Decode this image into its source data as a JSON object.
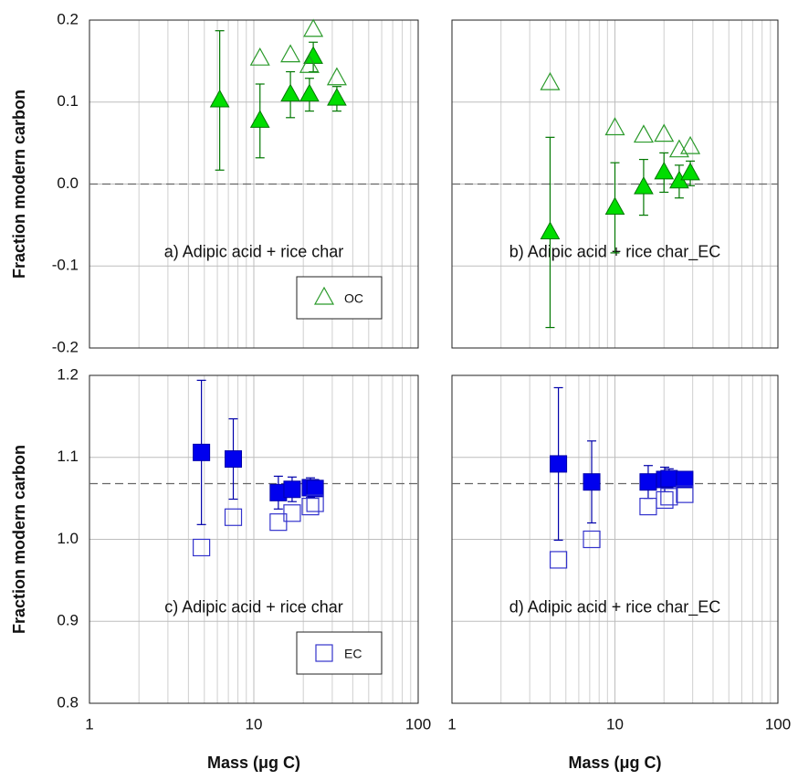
{
  "chart_data": [
    {
      "type": "scatter",
      "xscale": "log",
      "xlim": [
        1,
        100
      ],
      "xticks": [
        1,
        10,
        100
      ],
      "xtick_labels": false,
      "ylim": [
        -0.2,
        0.2
      ],
      "yticks": [
        -0.2,
        -0.1,
        {
          "value": 0,
          "label": "0.0"
        },
        0.1,
        0.2
      ],
      "ytick_labels": true,
      "ylabel": "Fraction modern carbon",
      "annotation": "a) Adipic acid + rice char",
      "hline": 0,
      "grid": true,
      "legend": "lower right",
      "series": [
        {
          "marker": "triangle",
          "filled": true,
          "color": "#00dd00",
          "edge": "#007700",
          "x": [
            6.2,
            10.9,
            16.7,
            21.8,
            23,
            32
          ],
          "values": [
            0.102,
            0.077,
            0.109,
            0.109,
            0.155,
            0.104
          ],
          "errors": [
            0.085,
            0.045,
            0.028,
            0.02,
            0.018,
            0.015
          ]
        },
        {
          "name": "OC",
          "marker": "triangle",
          "filled": false,
          "color": "#2a9a2a",
          "edge": "#2a9a2a",
          "x": [
            10.9,
            16.7,
            21.8,
            23,
            32
          ],
          "values": [
            0.153,
            0.157,
            0.144,
            0.188,
            0.129
          ]
        }
      ]
    },
    {
      "type": "scatter",
      "xscale": "log",
      "xlim": [
        1,
        100
      ],
      "xticks": [
        1,
        10,
        100
      ],
      "xtick_labels": false,
      "ylim": [
        -0.2,
        0.2
      ],
      "yticks": [
        -0.2,
        -0.1,
        0,
        0.1,
        0.2
      ],
      "ytick_labels": false,
      "annotation": "b) Adipic acid + rice char_EC",
      "hline": 0,
      "grid": true,
      "series": [
        {
          "marker": "triangle",
          "filled": true,
          "color": "#00dd00",
          "edge": "#007700",
          "x": [
            4,
            10,
            15,
            20,
            24.8,
            29
          ],
          "values": [
            -0.059,
            -0.029,
            -0.004,
            0.014,
            0.003,
            0.013
          ],
          "errors": [
            0.116,
            0.055,
            0.034,
            0.024,
            0.02,
            0.015
          ]
        },
        {
          "marker": "triangle",
          "filled": false,
          "color": "#2a9a2a",
          "edge": "#2a9a2a",
          "x": [
            4,
            10,
            15,
            20,
            24.8,
            29
          ],
          "values": [
            0.123,
            0.068,
            0.059,
            0.06,
            0.041,
            0.045
          ]
        }
      ]
    },
    {
      "type": "scatter",
      "xscale": "log",
      "xlim": [
        1,
        100
      ],
      "xticks": [
        1,
        10,
        100
      ],
      "xtick_labels": true,
      "ylim": [
        0.8,
        1.2
      ],
      "yticks": [
        0.8,
        0.9,
        {
          "value": 1,
          "label": "1.0"
        },
        1.1,
        1.2
      ],
      "ytick_labels": true,
      "ylabel": "Fraction modern carbon",
      "xlabel": "Mass (μg C)",
      "annotation": "c) Adipic acid + rice char",
      "hline": 1.068,
      "grid": true,
      "legend": "lower right",
      "series": [
        {
          "marker": "square",
          "filled": true,
          "color": "#0000ee",
          "edge": "#0000aa",
          "x": [
            4.8,
            7.5,
            14.1,
            17.1,
            22.1,
            23.6
          ],
          "values": [
            1.106,
            1.098,
            1.057,
            1.061,
            1.063,
            1.062
          ],
          "errors": [
            0.088,
            0.049,
            0.02,
            0.015,
            0.012,
            0.01
          ]
        },
        {
          "name": "EC",
          "marker": "square",
          "filled": false,
          "color": "#3333cc",
          "edge": "#3333cc",
          "x": [
            4.8,
            7.5,
            14.1,
            17.1,
            22.1,
            23.6
          ],
          "values": [
            0.99,
            1.027,
            1.021,
            1.032,
            1.04,
            1.044
          ]
        }
      ]
    },
    {
      "type": "scatter",
      "xscale": "log",
      "xlim": [
        1,
        100
      ],
      "xticks": [
        1,
        10,
        100
      ],
      "xtick_labels": true,
      "ylim": [
        0.8,
        1.2
      ],
      "yticks": [
        0.8,
        0.9,
        1,
        1.1,
        1.2
      ],
      "ytick_labels": false,
      "xlabel": "Mass (μg C)",
      "annotation": "d) Adipic acid + rice char_EC",
      "hline": 1.068,
      "grid": true,
      "series": [
        {
          "marker": "square",
          "filled": true,
          "color": "#0000ee",
          "edge": "#0000aa",
          "x": [
            4.5,
            7.2,
            16,
            20.2,
            21.5,
            26.8
          ],
          "values": [
            1.092,
            1.07,
            1.07,
            1.073,
            1.074,
            1.073
          ],
          "errors": [
            0.093,
            0.05,
            0.02,
            0.015,
            0.012,
            0.008
          ]
        },
        {
          "marker": "square",
          "filled": false,
          "color": "#3333cc",
          "edge": "#3333cc",
          "x": [
            4.5,
            7.2,
            16,
            20.2,
            21.5,
            26.8
          ],
          "values": [
            0.975,
            1.0,
            1.04,
            1.048,
            1.052,
            1.055
          ]
        }
      ]
    }
  ]
}
